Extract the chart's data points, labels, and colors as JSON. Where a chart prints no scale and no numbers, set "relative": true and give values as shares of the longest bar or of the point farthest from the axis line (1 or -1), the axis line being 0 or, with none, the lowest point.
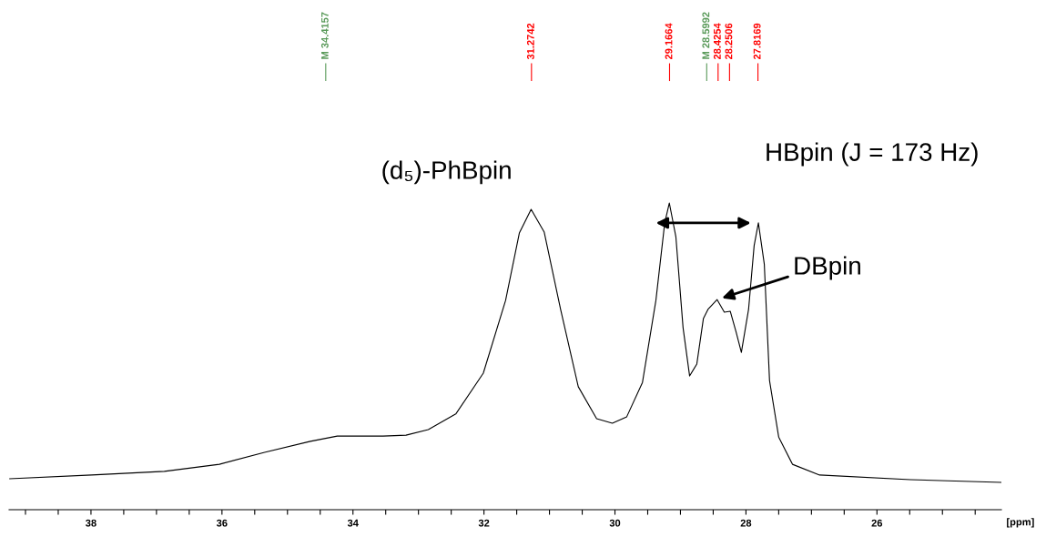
{
  "chart_data": {
    "type": "line",
    "relative": true,
    "xlabel": "[ppm]",
    "x": [
      39.24,
      37.99,
      36.88,
      36.04,
      35.35,
      34.65,
      34.24,
      33.54,
      33.19,
      32.85,
      32.43,
      32.01,
      31.67,
      31.46,
      31.28,
      31.08,
      30.83,
      30.56,
      30.28,
      30.04,
      29.82,
      29.58,
      29.375,
      29.24,
      29.17,
      29.07,
      28.96,
      28.86,
      28.75,
      28.65,
      28.58,
      28.44,
      28.33,
      28.24,
      28.15,
      28.07,
      27.96,
      27.875,
      27.81,
      27.72,
      27.64,
      27.5,
      27.29,
      26.875,
      25.49,
      24.1
    ],
    "series": [
      {
        "color": "#000000",
        "values": [
          0.101,
          0.113,
          0.125,
          0.148,
          0.187,
          0.223,
          0.24,
          0.24,
          0.243,
          0.261,
          0.312,
          0.445,
          0.682,
          0.902,
          0.979,
          0.905,
          0.653,
          0.401,
          0.297,
          0.282,
          0.303,
          0.415,
          0.682,
          0.935,
          1.0,
          0.89,
          0.593,
          0.436,
          0.475,
          0.623,
          0.653,
          0.685,
          0.644,
          0.647,
          0.579,
          0.513,
          0.653,
          0.861,
          0.935,
          0.801,
          0.421,
          0.237,
          0.148,
          0.113,
          0.098,
          0.089
        ]
      }
    ],
    "xlim": [
      39.25,
      24.1
    ],
    "xticks": [
      38,
      36,
      34,
      32,
      30,
      28,
      26
    ],
    "tick_labels": "x",
    "grid": false,
    "legend": false,
    "marker": "none",
    "line_style": "solid",
    "ref_lines": [
      {
        "axis": "x",
        "value": 34.4157,
        "label": "M 34.4157",
        "color": "#5a9a5a"
      },
      {
        "axis": "x",
        "value": 31.2742,
        "label": "31.2742",
        "color": "#ff0000"
      },
      {
        "axis": "x",
        "value": 29.1664,
        "label": "29.1664",
        "color": "#ff0000"
      },
      {
        "axis": "x",
        "value": 28.5992,
        "label": "M 28.5992",
        "color": "#5a9a5a"
      },
      {
        "axis": "x",
        "value": 28.4254,
        "label": "28.4254",
        "color": "#ff0000"
      },
      {
        "axis": "x",
        "value": 28.2506,
        "label": "28.2506",
        "color": "#ff0000"
      },
      {
        "axis": "x",
        "value": 27.8169,
        "label": "27.8169",
        "color": "#ff0000"
      }
    ],
    "annotations": [
      {
        "text": "(d₅)-PhBpin",
        "x": 31.28,
        "y": 0.979
      },
      {
        "text": "HBpin (J = 173 Hz)",
        "x": 27.81,
        "y": 0.935
      },
      {
        "text": "DBpin",
        "x": 28.44,
        "y": 0.685
      }
    ]
  }
}
